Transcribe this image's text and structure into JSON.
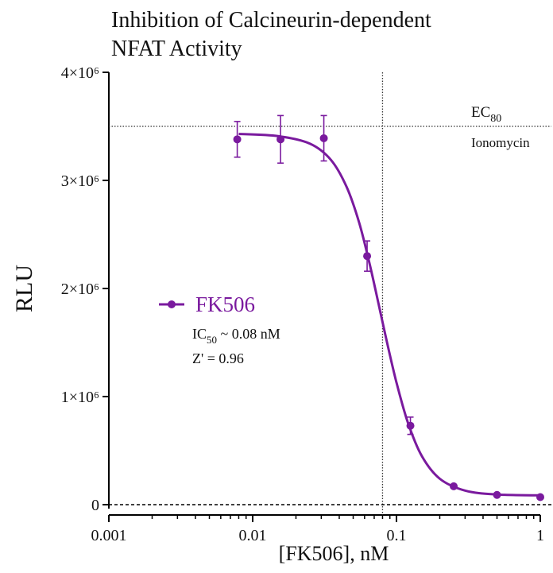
{
  "chart_data": {
    "type": "dose-response",
    "title": [
      "Inhibition of Calcineurin-dependent",
      "NFAT Activity"
    ],
    "x_label": "[FK506], nM",
    "y_label": "RLU",
    "x_scale": "log",
    "xlim": [
      0.001,
      1
    ],
    "xticks": [
      0.001,
      0.01,
      0.1,
      1
    ],
    "ylim": [
      0,
      4000000
    ],
    "yticks": [
      0,
      {
        "value": 1000000,
        "label": "1×10⁶"
      },
      {
        "value": 2000000,
        "label": "2×10⁶"
      },
      {
        "value": 3000000,
        "label": "3×10⁶"
      },
      {
        "value": 4000000,
        "label": "4×10⁶"
      }
    ],
    "series": [
      {
        "name": "FK506",
        "color": "#7a1a9e",
        "x": [
          0.0078125,
          0.015625,
          0.03125,
          0.0625,
          0.125,
          0.25,
          0.5,
          1
        ],
        "values": [
          3380000,
          3380000,
          3390000,
          2300000,
          730000,
          170000,
          90000,
          70000
        ],
        "errors": [
          165000,
          220000,
          210000,
          140000,
          80000,
          10000,
          10000,
          10000
        ],
        "fit": {
          "x": [
            0.008,
            0.015,
            0.025,
            0.035,
            0.045,
            0.055,
            0.065,
            0.075,
            0.085,
            0.1,
            0.12,
            0.15,
            0.2,
            0.3,
            0.5,
            1
          ],
          "values": [
            3430000,
            3410000,
            3340000,
            3190000,
            2940000,
            2610000,
            2230000,
            1860000,
            1530000,
            1130000,
            760000,
            450000,
            240000,
            130000,
            94000,
            86000
          ]
        }
      }
    ],
    "reference_lines": {
      "y": 3500000,
      "x": 0.08,
      "baseline": 0
    },
    "annotations": {
      "ec_main": "EC",
      "ec_sub": "80",
      "ec_agent": "Ionomycin",
      "ic_main": "IC",
      "ic_sub": "50",
      "ic_rest": " ~ 0.08 nM",
      "z_prime": "Z' = 0.96"
    }
  }
}
